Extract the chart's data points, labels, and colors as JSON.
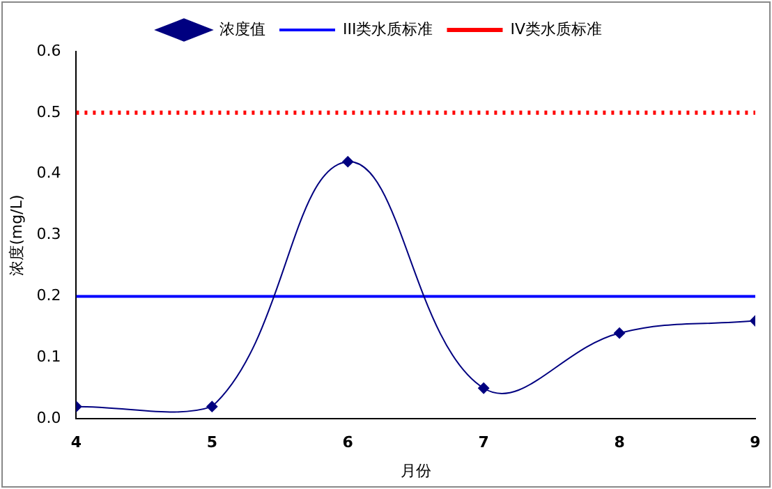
{
  "chart_data": {
    "type": "line",
    "xlabel": "月份",
    "ylabel": "浓度(mg/L)",
    "x": [
      4,
      5,
      6,
      7,
      8,
      9
    ],
    "series": [
      {
        "name": "浓度值",
        "color": "#000080",
        "values": [
          0.02,
          0.02,
          0.42,
          0.05,
          0.14,
          0.16
        ]
      }
    ],
    "ref_lines": [
      {
        "axis": "y",
        "value": 0.2,
        "label": "III类水质标准",
        "color": "#0000ff",
        "line_style": "solid"
      },
      {
        "axis": "y",
        "value": 0.5,
        "label": "IV类水质标准",
        "color": "#ff0000",
        "line_style": "dotted"
      }
    ],
    "xlim": [
      4,
      9
    ],
    "xticks": [
      4,
      5,
      6,
      7,
      8,
      9
    ],
    "ylim": [
      0,
      0.6
    ],
    "yticks": [
      {
        "value": 0,
        "label": "0.0"
      },
      {
        "value": 0.1,
        "label": "0.1"
      },
      {
        "value": 0.2,
        "label": "0.2"
      },
      {
        "value": 0.3,
        "label": "0.3"
      },
      {
        "value": 0.4,
        "label": "0.4"
      },
      {
        "value": 0.5,
        "label": "0.5"
      },
      {
        "value": 0.6,
        "label": "0.6"
      }
    ],
    "grid": false,
    "legend": "top",
    "marker": "diamond",
    "line_style": "solid"
  }
}
